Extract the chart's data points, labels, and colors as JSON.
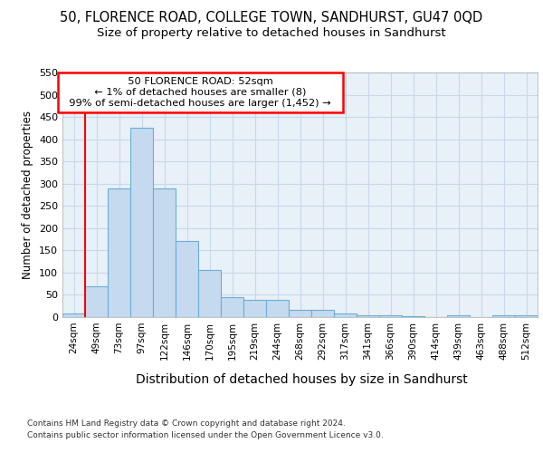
{
  "title": "50, FLORENCE ROAD, COLLEGE TOWN, SANDHURST, GU47 0QD",
  "subtitle": "Size of property relative to detached houses in Sandhurst",
  "xlabel": "Distribution of detached houses by size in Sandhurst",
  "ylabel": "Number of detached properties",
  "categories": [
    "24sqm",
    "49sqm",
    "73sqm",
    "97sqm",
    "122sqm",
    "146sqm",
    "170sqm",
    "195sqm",
    "219sqm",
    "244sqm",
    "268sqm",
    "292sqm",
    "317sqm",
    "341sqm",
    "366sqm",
    "390sqm",
    "414sqm",
    "439sqm",
    "463sqm",
    "488sqm",
    "512sqm"
  ],
  "bar_values": [
    8,
    70,
    290,
    425,
    290,
    172,
    105,
    44,
    38,
    38,
    17,
    17,
    8,
    5,
    5,
    2,
    0,
    4,
    0,
    4,
    4
  ],
  "bar_color": "#c5d9ef",
  "bar_edge_color": "#6baed6",
  "ylim": [
    0,
    550
  ],
  "yticks": [
    0,
    50,
    100,
    150,
    200,
    250,
    300,
    350,
    400,
    450,
    500,
    550
  ],
  "property_line_x": 0.5,
  "property_label": "50 FLORENCE ROAD: 52sqm",
  "arrow_left_text": "← 1% of detached houses are smaller (8)",
  "arrow_right_text": "99% of semi-detached houses are larger (1,452) →",
  "footnote1": "Contains HM Land Registry data © Crown copyright and database right 2024.",
  "footnote2": "Contains public sector information licensed under the Open Government Licence v3.0.",
  "title_fontsize": 10.5,
  "subtitle_fontsize": 9.5,
  "xlabel_fontsize": 10,
  "ylabel_fontsize": 8.5,
  "background_color": "#ffffff",
  "grid_color": "#c8d8ea",
  "plot_bg_color": "#e8f0f8"
}
